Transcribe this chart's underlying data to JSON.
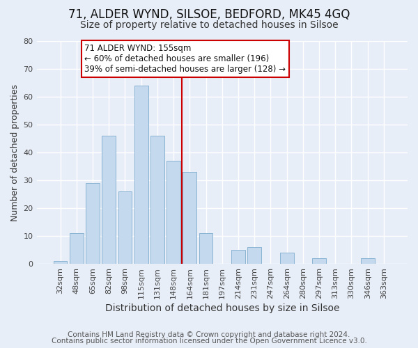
{
  "title": "71, ALDER WYND, SILSOE, BEDFORD, MK45 4GQ",
  "subtitle": "Size of property relative to detached houses in Silsoe",
  "xlabel": "Distribution of detached houses by size in Silsoe",
  "ylabel": "Number of detached properties",
  "categories": [
    "32sqm",
    "48sqm",
    "65sqm",
    "82sqm",
    "98sqm",
    "115sqm",
    "131sqm",
    "148sqm",
    "164sqm",
    "181sqm",
    "197sqm",
    "214sqm",
    "231sqm",
    "247sqm",
    "264sqm",
    "280sqm",
    "297sqm",
    "313sqm",
    "330sqm",
    "346sqm",
    "363sqm"
  ],
  "values": [
    1,
    11,
    29,
    46,
    26,
    64,
    46,
    37,
    33,
    11,
    0,
    5,
    6,
    0,
    4,
    0,
    2,
    0,
    0,
    2,
    0
  ],
  "bar_color": "#c5d9ee",
  "bar_edge_color": "#8ab4d4",
  "ref_line_color": "#cc0000",
  "annotation_text_line1": "71 ALDER WYND: 155sqm",
  "annotation_text_line2": "← 60% of detached houses are smaller (196)",
  "annotation_text_line3": "39% of semi-detached houses are larger (128) →",
  "annotation_box_color": "#ffffff",
  "annotation_box_edge_color": "#cc0000",
  "ylim": [
    0,
    80
  ],
  "yticks": [
    0,
    10,
    20,
    30,
    40,
    50,
    60,
    70,
    80
  ],
  "footer1": "Contains HM Land Registry data © Crown copyright and database right 2024.",
  "footer2": "Contains public sector information licensed under the Open Government Licence v3.0.",
  "background_color": "#e8eef8",
  "plot_background_color": "#e8eef8",
  "grid_color": "#ffffff",
  "title_fontsize": 12,
  "subtitle_fontsize": 10,
  "xlabel_fontsize": 10,
  "ylabel_fontsize": 9,
  "tick_fontsize": 8,
  "footer_fontsize": 7.5,
  "ref_line_x": 7.5
}
